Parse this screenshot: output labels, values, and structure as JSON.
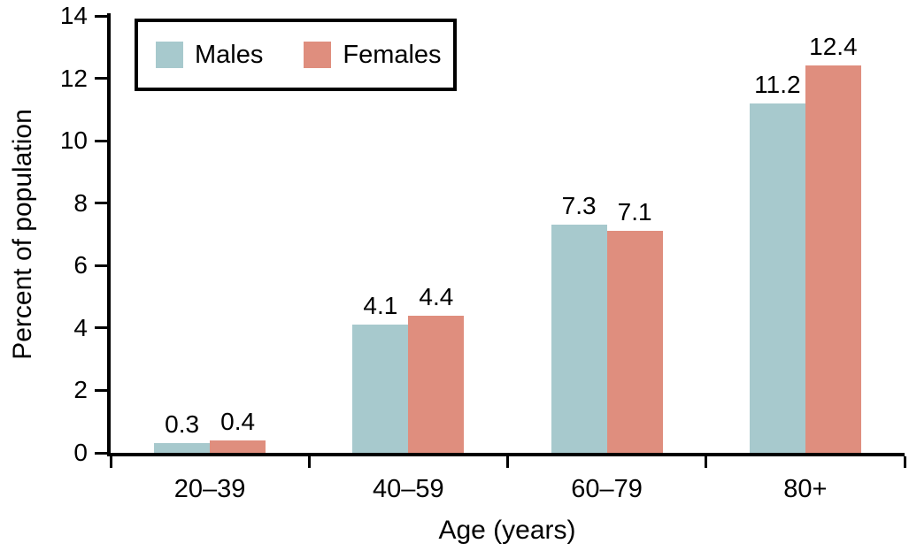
{
  "colors": {
    "males": "#a7c9cd",
    "females": "#df8e7e",
    "axis": "#000000",
    "background": "#ffffff",
    "text": "#000000"
  },
  "legend": {
    "items": [
      {
        "label": "Males",
        "color_key": "males"
      },
      {
        "label": "Females",
        "color_key": "females"
      }
    ]
  },
  "chart_data": {
    "type": "bar",
    "title": "",
    "categories": [
      "20–39",
      "40–59",
      "60–79",
      "80+"
    ],
    "series": [
      {
        "name": "Males",
        "color": "#a7c9cd",
        "values": [
          0.3,
          4.1,
          7.3,
          11.2
        ]
      },
      {
        "name": "Females",
        "color": "#df8e7e",
        "values": [
          0.4,
          4.4,
          7.1,
          12.4
        ]
      }
    ],
    "value_labels": [
      "0.3",
      "0.4",
      "4.1",
      "4.4",
      "7.3",
      "7.1",
      "11.2",
      "12.4"
    ],
    "xlabel": "Age (years)",
    "ylabel": "Percent of population",
    "ylim": [
      0,
      14
    ],
    "yticks": [
      0,
      2,
      4,
      6,
      8,
      10,
      12,
      14
    ],
    "grid": false,
    "legend_position": "top-left"
  }
}
